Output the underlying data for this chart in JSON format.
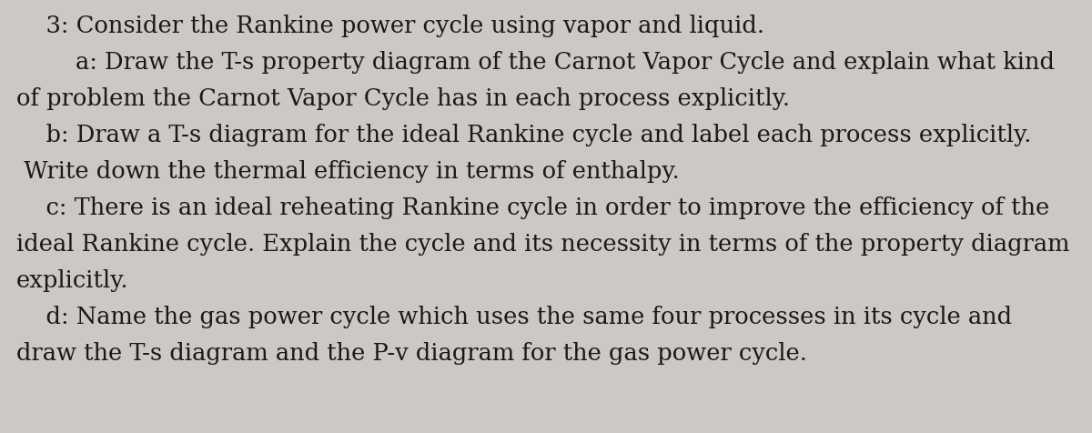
{
  "background_color": "#ccc8c4",
  "text_color": "#1a1a1a",
  "fig_width": 12.0,
  "fig_height": 4.76,
  "font_family": "DejaVu Serif",
  "fontsize": 18.5,
  "linespacing": 1.75,
  "full_text": "    3: Consider the Rankine power cycle using vapor and liquid.\n        a: Draw the T-s property diagram of the Carnot Vapor Cycle and explain what kind\nof problem the Carnot Vapor Cycle has in each process explicitly.\n    b: Draw a T-s diagram for the ideal Rankine cycle and label each process explicitly.\n Write down the thermal efficiency in terms of enthalpy.\n    c: There is an ideal reheating Rankine cycle in order to improve the efficiency of the\nideal Rankine cycle. Explain the cycle and its necessity in terms of the property diagram\nexplicitly.\n    d: Name the gas power cycle which uses the same four processes in its cycle and\ndraw the T-s diagram and the P-v diagram for the gas power cycle."
}
